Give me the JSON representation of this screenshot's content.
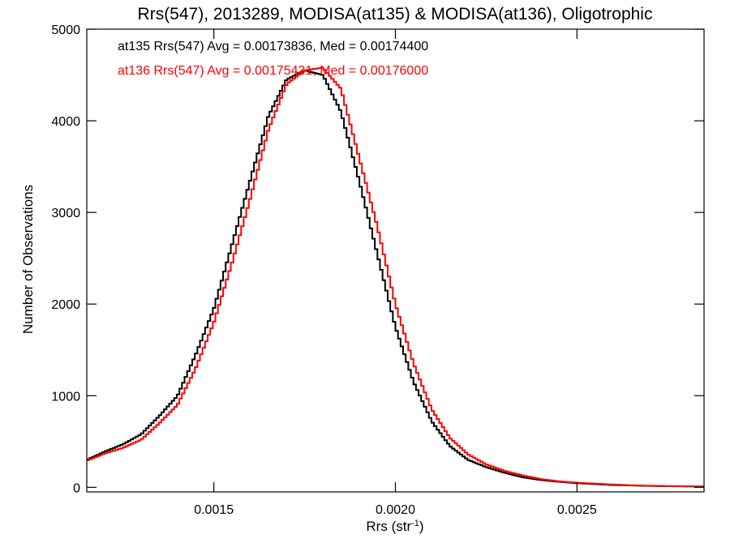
{
  "chart_data": {
    "type": "line",
    "title": "Rrs(547), 2013289, MODISA(at135) & MODISA(at136), Oligotrophic",
    "xlabel_main": "Rrs (str",
    "xlabel_sup": "-1",
    "xlabel_close": ")",
    "ylabel": "Number of Observations",
    "xlim": [
      0.00115,
      0.00285
    ],
    "ylim": [
      -50,
      5000
    ],
    "x_ticks": [
      0.0015,
      0.002,
      0.0025
    ],
    "x_tick_labels": [
      "0.0015",
      "0.0020",
      "0.0025"
    ],
    "y_ticks": [
      0,
      1000,
      2000,
      3000,
      4000,
      5000
    ],
    "y_tick_labels": [
      "0",
      "1000",
      "2000",
      "3000",
      "4000",
      "5000"
    ],
    "grid": false,
    "x": [
      0.00115,
      0.0012,
      0.00125,
      0.0013,
      0.00135,
      0.0014,
      0.00145,
      0.0015,
      0.00155,
      0.0016,
      0.00165,
      0.0017,
      0.00175,
      0.0018,
      0.00185,
      0.0019,
      0.00195,
      0.002,
      0.00205,
      0.0021,
      0.00215,
      0.0022,
      0.00225,
      0.0023,
      0.00235,
      0.0024,
      0.00245,
      0.0025,
      0.00255,
      0.0026,
      0.00265,
      0.0027,
      0.00275,
      0.0028,
      0.00285
    ],
    "series": [
      {
        "name": "at135",
        "color": "#000000",
        "values": [
          300,
          390,
          470,
          580,
          780,
          1000,
          1450,
          1950,
          2650,
          3350,
          4050,
          4450,
          4550,
          4500,
          4100,
          3350,
          2550,
          1750,
          1150,
          720,
          450,
          300,
          220,
          160,
          110,
          80,
          60,
          45,
          35,
          25,
          20,
          15,
          12,
          10,
          8
        ]
      },
      {
        "name": "at136",
        "color": "#ff0000",
        "values": [
          290,
          370,
          430,
          520,
          700,
          900,
          1300,
          1800,
          2450,
          3150,
          3900,
          4400,
          4550,
          4580,
          4350,
          3600,
          2850,
          2000,
          1350,
          850,
          540,
          360,
          250,
          180,
          130,
          90,
          65,
          50,
          40,
          30,
          22,
          17,
          13,
          11,
          9
        ]
      }
    ],
    "annotations": [
      {
        "text": "at135 Rrs(547) Avg = 0.00173836, Med = 0.00174400",
        "color": "#000000"
      },
      {
        "text": "at136 Rrs(547) Avg = 0.00175431, Med = 0.00176000",
        "color": "#ff0000"
      }
    ]
  }
}
